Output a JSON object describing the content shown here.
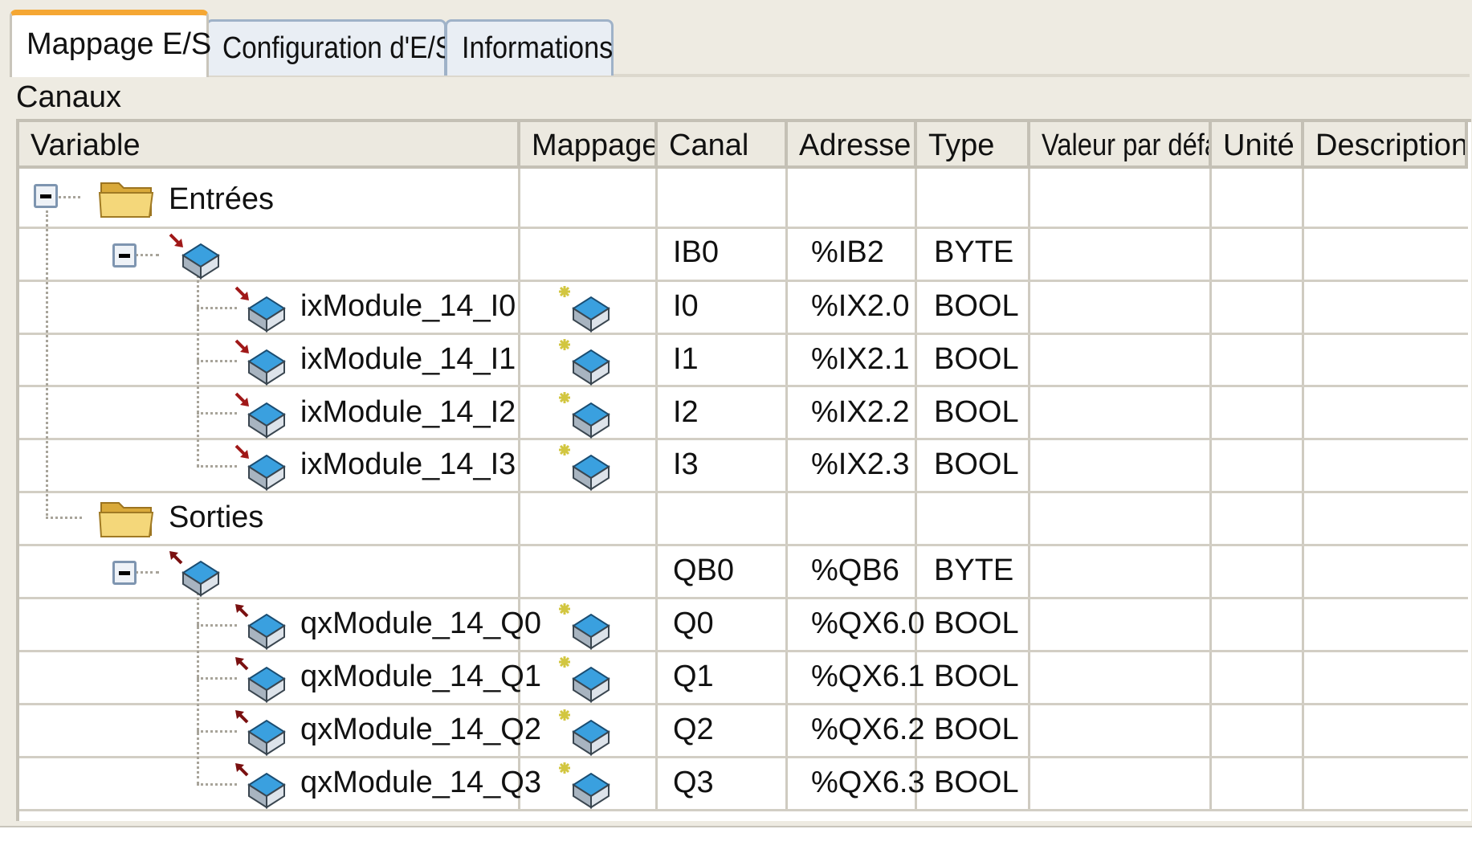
{
  "tabs": [
    {
      "label": "Mappage E/S",
      "active": true
    },
    {
      "label": "Configuration d'E/S",
      "active": false
    },
    {
      "label": "Informations",
      "active": false
    }
  ],
  "section_label": "Canaux",
  "columns": [
    "Variable",
    "Mappage",
    "Canal",
    "Adresse",
    "Type",
    "Valeur par défaut",
    "Unité",
    "Description"
  ],
  "groups": {
    "inputs": {
      "folder_label": "Entrées",
      "byte": {
        "canal": "IB0",
        "adresse": "%IB2",
        "type": "BYTE"
      },
      "channels": [
        {
          "variable": "ixModule_14_I0",
          "canal": "I0",
          "adresse": "%IX2.0",
          "type": "BOOL"
        },
        {
          "variable": "ixModule_14_I1",
          "canal": "I1",
          "adresse": "%IX2.1",
          "type": "BOOL"
        },
        {
          "variable": "ixModule_14_I2",
          "canal": "I2",
          "adresse": "%IX2.2",
          "type": "BOOL"
        },
        {
          "variable": "ixModule_14_I3",
          "canal": "I3",
          "adresse": "%IX2.3",
          "type": "BOOL"
        }
      ]
    },
    "outputs": {
      "folder_label": "Sorties",
      "byte": {
        "canal": "QB0",
        "adresse": "%QB6",
        "type": "BYTE"
      },
      "channels": [
        {
          "variable": "qxModule_14_Q0",
          "canal": "Q0",
          "adresse": "%QX6.0",
          "type": "BOOL"
        },
        {
          "variable": "qxModule_14_Q1",
          "canal": "Q1",
          "adresse": "%QX6.1",
          "type": "BOOL"
        },
        {
          "variable": "qxModule_14_Q2",
          "canal": "Q2",
          "adresse": "%QX6.2",
          "type": "BOOL"
        },
        {
          "variable": "qxModule_14_Q3",
          "canal": "Q3",
          "adresse": "%QX6.3",
          "type": "BOOL"
        }
      ]
    }
  },
  "colors": {
    "active_tab_accent": "#f5a733",
    "cube_top": "#3aa0df",
    "input_arrow": "#a01818",
    "output_arrow": "#7a1010",
    "folder": "#f0c85a"
  },
  "icons": {
    "toggle": "collapse-minus-icon",
    "folder": "folder-icon",
    "input_channel": "input-channel-cube-icon",
    "output_channel": "output-channel-cube-icon",
    "mapping": "existing-variable-mapping-icon"
  }
}
